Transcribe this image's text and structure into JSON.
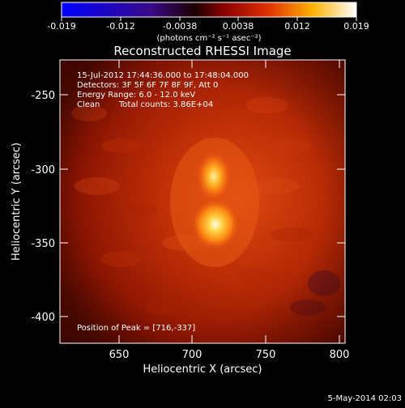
{
  "colorbar": {
    "tick_labels": [
      "-0.019",
      "-0.012",
      "-0.0038",
      "0.0038",
      "0.012",
      "0.019"
    ],
    "units_label": "(photons cm⁻² s⁻¹ asec⁻²)",
    "vmin": -0.019,
    "vmax": 0.019
  },
  "plot": {
    "title": "Reconstructed RHESSI Image",
    "xlabel": "Heliocentric X (arcsec)",
    "ylabel": "Heliocentric Y (arcsec)",
    "x_ticks": [
      "650",
      "700",
      "750",
      "800"
    ],
    "y_ticks": [
      "-250",
      "-300",
      "-350",
      "-400"
    ],
    "xlim": [
      610,
      803
    ],
    "ylim": [
      -418,
      -226
    ]
  },
  "annotations": {
    "time_range": "15-Jul-2012 17:44:36.000 to 17:48:04.000",
    "detectors": "Detectors: 3F 5F 6F 7F 8F 9F, Att 0",
    "energy_range": "Energy Range: 6.0 - 12.0 keV",
    "clean": "Clean",
    "total_counts": "Total counts: 3.86E+04",
    "peak_position": "Position of Peak = [716,-337]"
  },
  "footer": {
    "date": "5-May-2014 02:03"
  },
  "colors": {
    "background": "#000000",
    "text": "#ffffff"
  }
}
